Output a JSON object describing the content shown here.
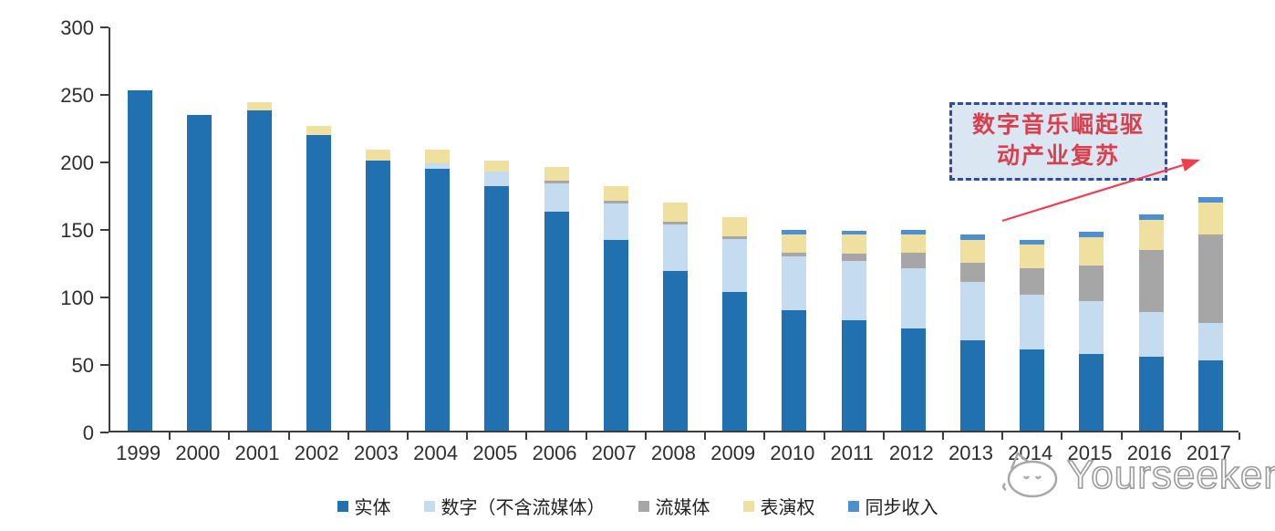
{
  "chart_data": {
    "type": "bar",
    "stacked": true,
    "categories": [
      "1999",
      "2000",
      "2001",
      "2002",
      "2003",
      "2004",
      "2005",
      "2006",
      "2007",
      "2008",
      "2009",
      "2010",
      "2011",
      "2012",
      "2013",
      "2014",
      "2015",
      "2016",
      "2017"
    ],
    "series": [
      {
        "id": "physical",
        "name": "实体",
        "color": "#2171B0",
        "values": [
          252,
          234,
          237,
          219,
          200,
          194,
          181,
          162,
          141,
          118,
          103,
          89,
          82,
          76,
          67,
          60,
          57,
          55,
          52
        ]
      },
      {
        "id": "digital-ex-streaming",
        "name": "数字（不含流媒体）",
        "color": "#C5DCF0",
        "values": [
          0,
          0,
          0,
          0,
          0,
          4,
          11,
          21,
          27,
          35,
          39,
          40,
          44,
          44,
          43,
          41,
          39,
          33,
          28
        ]
      },
      {
        "id": "streaming",
        "name": "流媒体",
        "color": "#A6A6A6",
        "values": [
          0,
          0,
          0,
          0,
          0,
          0,
          0,
          2,
          2,
          2,
          2,
          3,
          5,
          12,
          14,
          19,
          26,
          46,
          65
        ]
      },
      {
        "id": "performance-rights",
        "name": "表演权",
        "color": "#F0E0A0",
        "values": [
          0,
          0,
          6,
          7,
          8,
          10,
          8,
          10,
          11,
          14,
          14,
          13,
          14,
          13,
          17,
          18,
          21,
          22,
          24
        ]
      },
      {
        "id": "synchronization",
        "name": "同步收入",
        "color": "#4E8FD0",
        "values": [
          0,
          0,
          0,
          0,
          0,
          0,
          0,
          0,
          0,
          0,
          0,
          4,
          3,
          4,
          4,
          3,
          4,
          4,
          4
        ]
      }
    ],
    "ylim": [
      0,
      300
    ],
    "yticks": [
      0,
      50,
      100,
      150,
      200,
      250,
      300
    ],
    "grid": false,
    "legend_position": "bottom"
  },
  "annotation": {
    "line1": "数字音乐崛起驱",
    "line2": "动产业复苏",
    "box_fill": "#dbe6f3",
    "border_color": "#2e4d9e",
    "text_color": "#d9404d",
    "arrow_color": "#ed3f4d"
  },
  "watermark": {
    "text": "Yourseeker",
    "logo": "cat-logo-icon"
  }
}
